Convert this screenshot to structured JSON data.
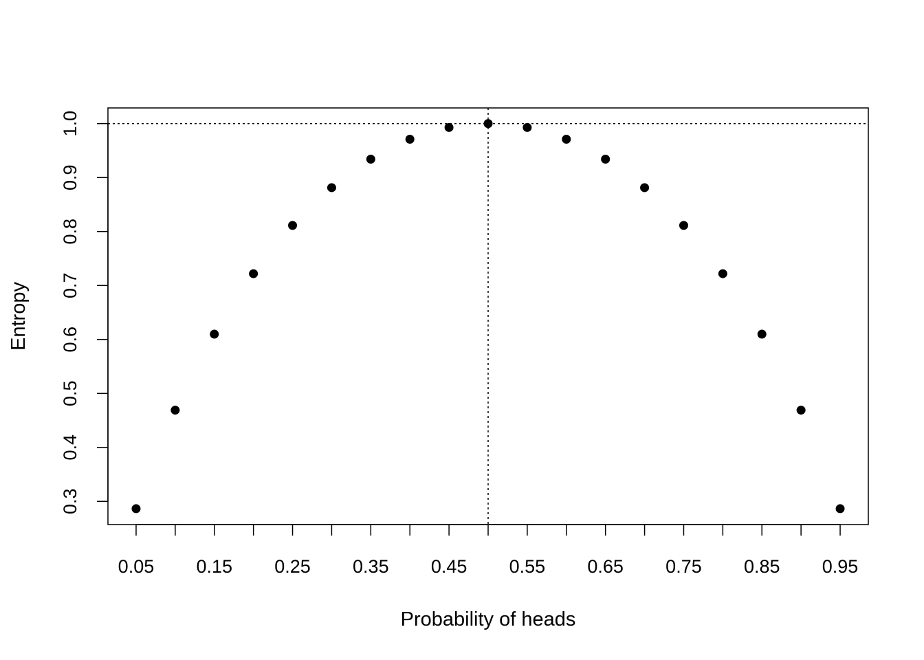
{
  "chart_data": {
    "type": "scatter",
    "title": "",
    "xlabel": "Probability of heads",
    "ylabel": "Entropy",
    "xlim": [
      0.014,
      0.986
    ],
    "ylim": [
      0.257,
      1.029
    ],
    "x_ticks": [
      0.05,
      0.1,
      0.15,
      0.2,
      0.25,
      0.3,
      0.35,
      0.4,
      0.45,
      0.5,
      0.55,
      0.6,
      0.65,
      0.7,
      0.75,
      0.8,
      0.85,
      0.9,
      0.95
    ],
    "x_tick_labels": [
      "0.05",
      "0.15",
      "0.25",
      "0.35",
      "0.45",
      "0.55",
      "0.65",
      "0.75",
      "0.85",
      "0.95"
    ],
    "x_tick_label_values": [
      0.05,
      0.15,
      0.25,
      0.35,
      0.45,
      0.55,
      0.65,
      0.75,
      0.85,
      0.95
    ],
    "y_ticks": [
      0.3,
      0.4,
      0.5,
      0.6,
      0.7,
      0.8,
      0.9,
      1.0
    ],
    "y_tick_labels": [
      "0.3",
      "0.4",
      "0.5",
      "0.6",
      "0.7",
      "0.8",
      "0.9",
      "1.0"
    ],
    "grid": false,
    "reference_lines": {
      "horizontal": 1.0,
      "vertical": 0.5,
      "style": "dotted"
    },
    "point_color": "#000000",
    "x": [
      0.05,
      0.1,
      0.15,
      0.2,
      0.25,
      0.3,
      0.35,
      0.4,
      0.45,
      0.5,
      0.55,
      0.6,
      0.65,
      0.7,
      0.75,
      0.8,
      0.85,
      0.9,
      0.95
    ],
    "y": [
      0.2864,
      0.469,
      0.6098,
      0.7219,
      0.8113,
      0.8813,
      0.9341,
      0.971,
      0.9928,
      1.0,
      0.9928,
      0.971,
      0.9341,
      0.8813,
      0.8113,
      0.7219,
      0.6098,
      0.469,
      0.2864
    ]
  }
}
